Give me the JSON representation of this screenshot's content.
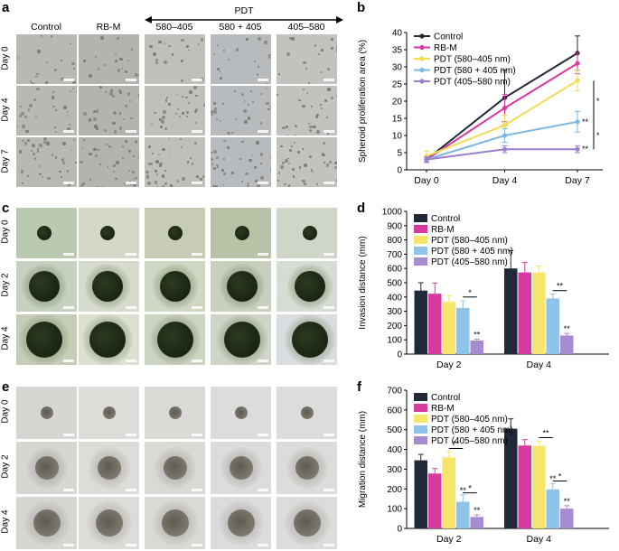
{
  "panel_labels": {
    "a": "a",
    "b": "b",
    "c": "c",
    "d": "d",
    "e": "e",
    "f": "f"
  },
  "panel_a": {
    "header": "PDT",
    "columns": [
      "Control",
      "RB-M",
      "580–405",
      "580 + 405",
      "405–580"
    ],
    "rows": [
      "Day 0",
      "Day 4",
      "Day 7"
    ]
  },
  "panel_c": {
    "rows": [
      "Day 0",
      "Day 2",
      "Day 4"
    ]
  },
  "panel_e": {
    "rows": [
      "Day 0",
      "Day 2",
      "Day 4"
    ]
  },
  "colors": {
    "control": "#1f2937",
    "rbm": "#d63a9e",
    "pdt1": "#f5e56b",
    "pdt2": "#8fc3ea",
    "pdt3": "#a78bcf",
    "line_pdt1": "#f0dc55",
    "line_pdt2": "#7db7e4",
    "line_pdt3": "#9b7fd0"
  },
  "chart_data": [
    {
      "id": "b",
      "type": "line",
      "categories": [
        "Day 0",
        "Day 4",
        "Day 7"
      ],
      "ylabel": "Spheroid proliferation area (%)",
      "ylim": [
        0,
        40
      ],
      "yticks": [
        "0",
        "5",
        "10",
        "15",
        "20",
        "25",
        "30",
        "35",
        "40"
      ],
      "legend_position": "top-left",
      "series": [
        {
          "name": "Control",
          "values": [
            3,
            21,
            34
          ],
          "err": [
            0.8,
            8,
            5
          ]
        },
        {
          "name": "RB-M",
          "values": [
            3,
            18,
            31
          ],
          "err": [
            0.8,
            4,
            3
          ]
        },
        {
          "name": "PDT (580–405 nm)",
          "values": [
            4,
            13,
            26
          ],
          "err": [
            1.5,
            3,
            3
          ]
        },
        {
          "name": "PDT (580 + 405 nm)",
          "values": [
            3,
            10,
            14
          ],
          "err": [
            0.8,
            2,
            3
          ]
        },
        {
          "name": "PDT (405–580 nm)",
          "values": [
            3,
            6,
            6
          ],
          "err": [
            0.8,
            1,
            1
          ]
        }
      ],
      "annotations": [
        "*",
        "**",
        "*",
        "**"
      ]
    },
    {
      "id": "d",
      "type": "bar",
      "categories": [
        "Day 2",
        "Day 4"
      ],
      "ylabel": "Invasion distance (mm)",
      "ylim": [
        0,
        1000
      ],
      "yticks": [
        "0",
        "100",
        "200",
        "300",
        "400",
        "500",
        "600",
        "700",
        "800",
        "900",
        "1000"
      ],
      "legend_position": "top-left",
      "series": [
        {
          "name": "Control",
          "values": [
            445,
            600
          ],
          "err": [
            55,
            125
          ]
        },
        {
          "name": "RB-M",
          "values": [
            423,
            572
          ],
          "err": [
            75,
            70
          ]
        },
        {
          "name": "PDT (580–405 nm)",
          "values": [
            365,
            572
          ],
          "err": [
            45,
            45
          ]
        },
        {
          "name": "PDT (580 + 405 nm)",
          "values": [
            323,
            390
          ],
          "err": [
            50,
            30
          ]
        },
        {
          "name": "PDT (405–580 nm)",
          "values": [
            95,
            130
          ],
          "err": [
            10,
            15
          ]
        }
      ],
      "annotations": [
        "*",
        "**",
        "**",
        "**"
      ]
    },
    {
      "id": "f",
      "type": "bar",
      "categories": [
        "Day 2",
        "Day 4"
      ],
      "ylabel": "Migration distance (mm)",
      "ylim": [
        0,
        700
      ],
      "yticks": [
        "0",
        "100",
        "200",
        "300",
        "400",
        "500",
        "600",
        "700"
      ],
      "legend_position": "top-left",
      "series": [
        {
          "name": "Control",
          "values": [
            345,
            505
          ],
          "err": [
            30,
            50
          ]
        },
        {
          "name": "RB-M",
          "values": [
            278,
            420
          ],
          "err": [
            25,
            30
          ]
        },
        {
          "name": "PDT (580–405 nm)",
          "values": [
            360,
            418
          ],
          "err": [
            30,
            25
          ]
        },
        {
          "name": "PDT (580 + 405 nm)",
          "values": [
            135,
            198
          ],
          "err": [
            35,
            30
          ]
        },
        {
          "name": "PDT (405–580 nm)",
          "values": [
            58,
            100
          ],
          "err": [
            10,
            15
          ]
        }
      ],
      "annotations": [
        "**",
        "*",
        "**",
        "**",
        "**",
        "*",
        "**",
        "**"
      ]
    }
  ]
}
